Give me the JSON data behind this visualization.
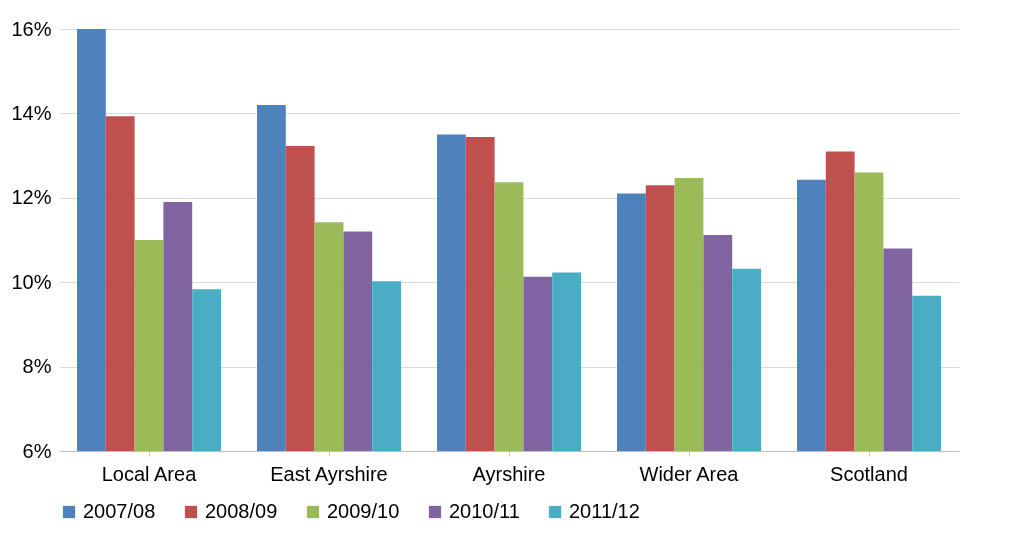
{
  "chart_data": {
    "type": "bar",
    "categories": [
      "Local Area",
      "East Ayrshire",
      "Ayrshire",
      "Wider Area",
      "Scotland"
    ],
    "series": [
      {
        "name": "2007/08",
        "color": "#4f81bd",
        "values": [
          16.0,
          14.2,
          13.5,
          12.1,
          12.43
        ]
      },
      {
        "name": "2008/09",
        "color": "#c0504d",
        "values": [
          13.93,
          13.23,
          13.44,
          12.3,
          13.1
        ]
      },
      {
        "name": "2009/10",
        "color": "#9bbb59",
        "values": [
          11.0,
          11.42,
          12.37,
          12.47,
          12.6
        ]
      },
      {
        "name": "2010/11",
        "color": "#8064a2",
        "values": [
          11.9,
          11.2,
          10.13,
          11.12,
          10.8
        ]
      },
      {
        "name": "2011/12",
        "color": "#4bacc6",
        "values": [
          9.83,
          10.02,
          10.23,
          10.32,
          9.68
        ]
      }
    ],
    "ylim": [
      6,
      16
    ],
    "yticks": [
      {
        "value": 6,
        "label": "6%"
      },
      {
        "value": 8,
        "label": "8%"
      },
      {
        "value": 10,
        "label": "10%"
      },
      {
        "value": 12,
        "label": "12%"
      },
      {
        "value": 14,
        "label": "14%"
      },
      {
        "value": 16,
        "label": "16%"
      }
    ],
    "grid": "y",
    "legend": "bottom"
  }
}
